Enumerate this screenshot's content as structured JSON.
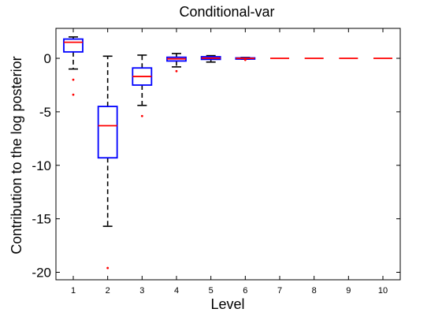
{
  "chart_data": {
    "type": "boxplot",
    "title": "Conditional-var",
    "xlabel": "Level",
    "ylabel": "Contribution to the log posterior",
    "categories": [
      "1",
      "2",
      "3",
      "4",
      "5",
      "6",
      "7",
      "8",
      "9",
      "10"
    ],
    "ylim": [
      -20.7,
      2.8
    ],
    "yticks": [
      0,
      -5,
      -10,
      -15,
      -20
    ],
    "grid": false,
    "colors": {
      "box": "#0000ff",
      "median": "#ff0000",
      "whisker": "#000000",
      "outlier": "#ff0000"
    },
    "boxes": [
      {
        "level": "1",
        "q1": 0.6,
        "median": 1.5,
        "q3": 1.8,
        "whisker_low": -1.0,
        "whisker_high": 2.0,
        "outliers": [
          -2.0,
          -3.4
        ]
      },
      {
        "level": "2",
        "q1": -9.3,
        "median": -6.3,
        "q3": -4.5,
        "whisker_low": -15.7,
        "whisker_high": 0.2,
        "outliers": [
          -19.6
        ]
      },
      {
        "level": "3",
        "q1": -2.5,
        "median": -1.7,
        "q3": -0.9,
        "whisker_low": -4.4,
        "whisker_high": 0.3,
        "outliers": [
          -5.4
        ]
      },
      {
        "level": "4",
        "q1": -0.25,
        "median": -0.05,
        "q3": 0.1,
        "whisker_low": -0.8,
        "whisker_high": 0.45,
        "outliers": [
          -1.2
        ]
      },
      {
        "level": "5",
        "q1": -0.1,
        "median": 0.02,
        "q3": 0.15,
        "whisker_low": -0.35,
        "whisker_high": 0.25,
        "outliers": []
      },
      {
        "level": "6",
        "q1": -0.03,
        "median": 0.0,
        "q3": 0.04,
        "whisker_low": -0.08,
        "whisker_high": 0.08,
        "outliers": [
          -0.15
        ]
      },
      {
        "level": "7",
        "q1": 0.0,
        "median": 0.0,
        "q3": 0.0,
        "whisker_low": 0.0,
        "whisker_high": 0.0,
        "outliers": []
      },
      {
        "level": "8",
        "q1": 0.0,
        "median": 0.0,
        "q3": 0.0,
        "whisker_low": 0.0,
        "whisker_high": 0.0,
        "outliers": []
      },
      {
        "level": "9",
        "q1": 0.0,
        "median": 0.0,
        "q3": 0.0,
        "whisker_low": 0.0,
        "whisker_high": 0.0,
        "outliers": []
      },
      {
        "level": "10",
        "q1": 0.0,
        "median": 0.0,
        "q3": 0.0,
        "whisker_low": 0.0,
        "whisker_high": 0.0,
        "outliers": []
      }
    ]
  }
}
